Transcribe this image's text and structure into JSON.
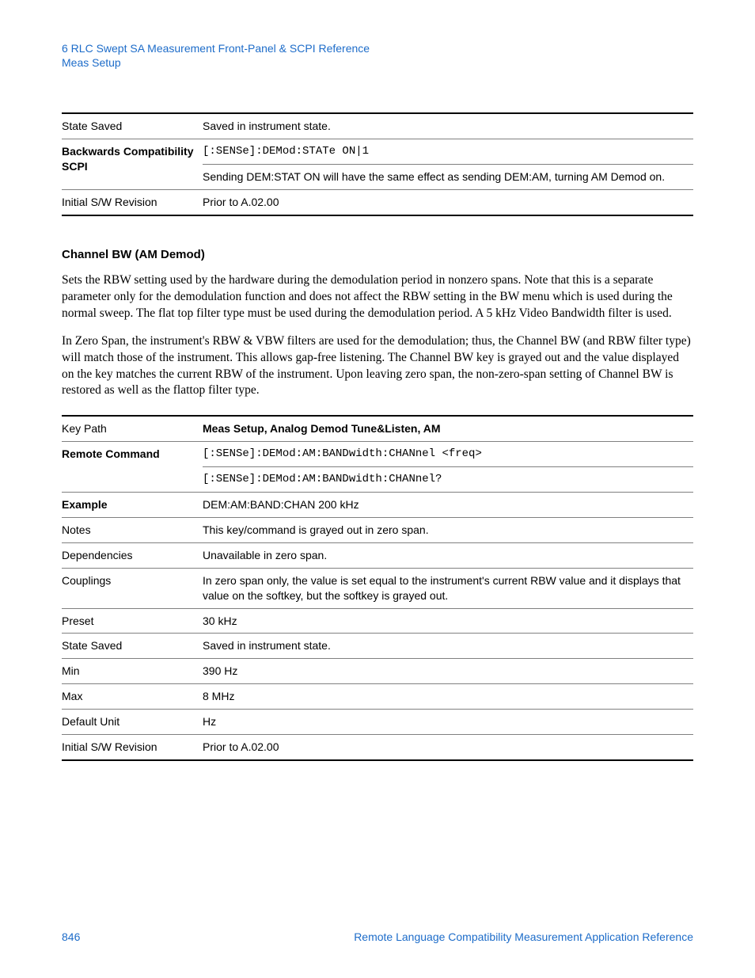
{
  "header": {
    "line1": "6  RLC Swept SA Measurement Front-Panel & SCPI Reference",
    "line2": "Meas Setup"
  },
  "table1": {
    "rows": [
      {
        "label": "State Saved",
        "label_bold": false,
        "values": [
          "Saved in instrument state."
        ],
        "mono": [
          false
        ]
      },
      {
        "label": "Backwards Compatibility SCPI",
        "label_bold": true,
        "values": [
          "[:SENSe]:DEMod:STATe ON|1",
          "Sending DEM:STAT ON will have the same effect as sending DEM:AM, turning AM Demod on."
        ],
        "mono": [
          true,
          false
        ]
      },
      {
        "label": "Initial S/W Revision",
        "label_bold": false,
        "values": [
          "Prior to A.02.00"
        ],
        "mono": [
          false
        ]
      }
    ]
  },
  "section": {
    "title": "Channel BW (AM Demod)",
    "para1": "Sets the RBW setting used by the hardware during the demodulation period in nonzero spans. Note that this is a separate parameter only for the demodulation function and does not affect the RBW setting in the BW menu which is used during the normal sweep. The flat top filter type must be used during the demodulation period. A 5 kHz Video Bandwidth filter is used.",
    "para2": "In Zero Span, the instrument's RBW & VBW filters are used for the demodulation; thus, the Channel BW (and RBW filter type) will match those of the instrument. This allows gap-free listening. The Channel BW key is grayed out and the value displayed on the key matches the current RBW of the instrument. Upon leaving zero span, the non-zero-span setting of Channel BW is restored as well as the flattop filter type."
  },
  "table2": {
    "rows": [
      {
        "label": "Key Path",
        "label_bold": false,
        "values": [
          "Meas Setup, Analog Demod Tune&Listen, AM"
        ],
        "mono": [
          false
        ],
        "val_bold": [
          true
        ]
      },
      {
        "label": "Remote Command",
        "label_bold": true,
        "values": [
          "[:SENSe]:DEMod:AM:BANDwidth:CHANnel <freq>",
          "[:SENSe]:DEMod:AM:BANDwidth:CHANnel?"
        ],
        "mono": [
          true,
          true
        ]
      },
      {
        "label": "Example",
        "label_bold": true,
        "values": [
          "DEM:AM:BAND:CHAN 200 kHz"
        ],
        "mono": [
          false
        ]
      },
      {
        "label": "Notes",
        "label_bold": false,
        "values": [
          "This key/command is grayed out in zero span."
        ],
        "mono": [
          false
        ]
      },
      {
        "label": "Dependencies",
        "label_bold": false,
        "values": [
          "Unavailable in zero span."
        ],
        "mono": [
          false
        ]
      },
      {
        "label": "Couplings",
        "label_bold": false,
        "values": [
          "In zero span only, the value is set equal to the instrument's current RBW value and it displays that value on the softkey, but the softkey is grayed out."
        ],
        "mono": [
          false
        ]
      },
      {
        "label": "Preset",
        "label_bold": false,
        "values": [
          "30 kHz"
        ],
        "mono": [
          false
        ]
      },
      {
        "label": "State Saved",
        "label_bold": false,
        "values": [
          "Saved in instrument state."
        ],
        "mono": [
          false
        ]
      },
      {
        "label": "Min",
        "label_bold": false,
        "values": [
          "390 Hz"
        ],
        "mono": [
          false
        ]
      },
      {
        "label": "Max",
        "label_bold": false,
        "values": [
          "8 MHz"
        ],
        "mono": [
          false
        ]
      },
      {
        "label": "Default Unit",
        "label_bold": false,
        "values": [
          "Hz"
        ],
        "mono": [
          false
        ]
      },
      {
        "label": "Initial S/W Revision",
        "label_bold": false,
        "values": [
          "Prior to A.02.00"
        ],
        "mono": [
          false
        ]
      }
    ]
  },
  "footer": {
    "page": "846",
    "title": "Remote Language Compatibility Measurement Application Reference"
  }
}
